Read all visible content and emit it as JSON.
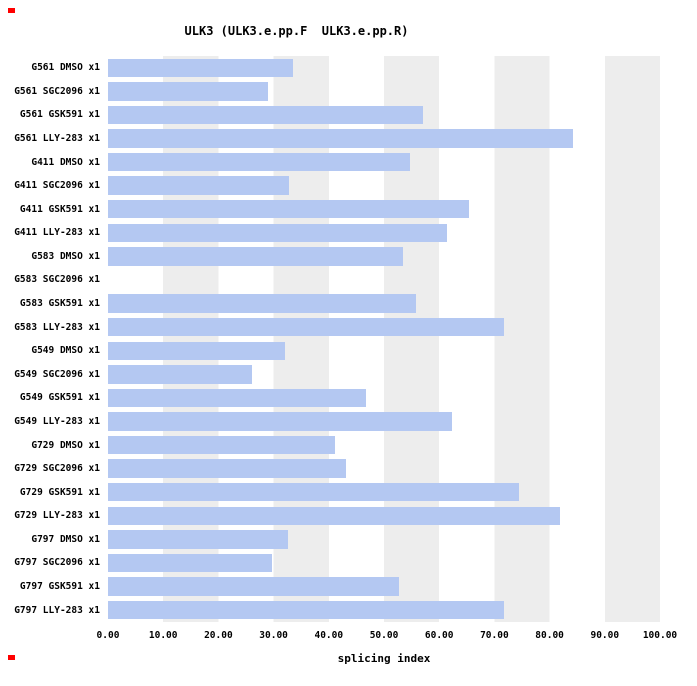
{
  "chart_data": {
    "type": "bar",
    "orientation": "horizontal",
    "title": "ULK3 (ULK3.e.pp.F  ULK3.e.pp.R)",
    "xlabel": "splicing index",
    "xlim": [
      0,
      100
    ],
    "x_ticks": [
      "0.00",
      "10.00",
      "20.00",
      "30.00",
      "40.00",
      "50.00",
      "60.00",
      "70.00",
      "80.00",
      "90.00",
      "100.00"
    ],
    "grid": "alternating vertical bands every 10 units",
    "legend": "none",
    "bar_color": "#b4c8f2",
    "stripe_color": "#ededed",
    "categories": [
      "G561 DMSO x1",
      "G561 SGC2096 x1",
      "G561 GSK591 x1",
      "G561 LLY-283 x1",
      "G411 DMSO x1",
      "G411 SGC2096 x1",
      "G411 GSK591 x1",
      "G411 LLY-283 x1",
      "G583 DMSO x1",
      "G583 SGC2096 x1",
      "G583 GSK591 x1",
      "G583 LLY-283 x1",
      "G549 DMSO x1",
      "G549 SGC2096 x1",
      "G549 GSK591 x1",
      "G549 LLY-283 x1",
      "G729 DMSO x1",
      "G729 SGC2096 x1",
      "G729 GSK591 x1",
      "G729 LLY-283 x1",
      "G797 DMSO x1",
      "G797 SGC2096 x1",
      "G797 GSK591 x1",
      "G797 LLY-283 x1"
    ],
    "values": [
      33.5,
      29.0,
      57.0,
      84.3,
      54.8,
      32.8,
      65.4,
      61.5,
      53.4,
      0.0,
      55.8,
      71.8,
      32.0,
      26.1,
      46.8,
      62.3,
      41.1,
      43.2,
      74.4,
      81.8,
      32.6,
      29.8,
      52.8,
      71.8
    ]
  }
}
